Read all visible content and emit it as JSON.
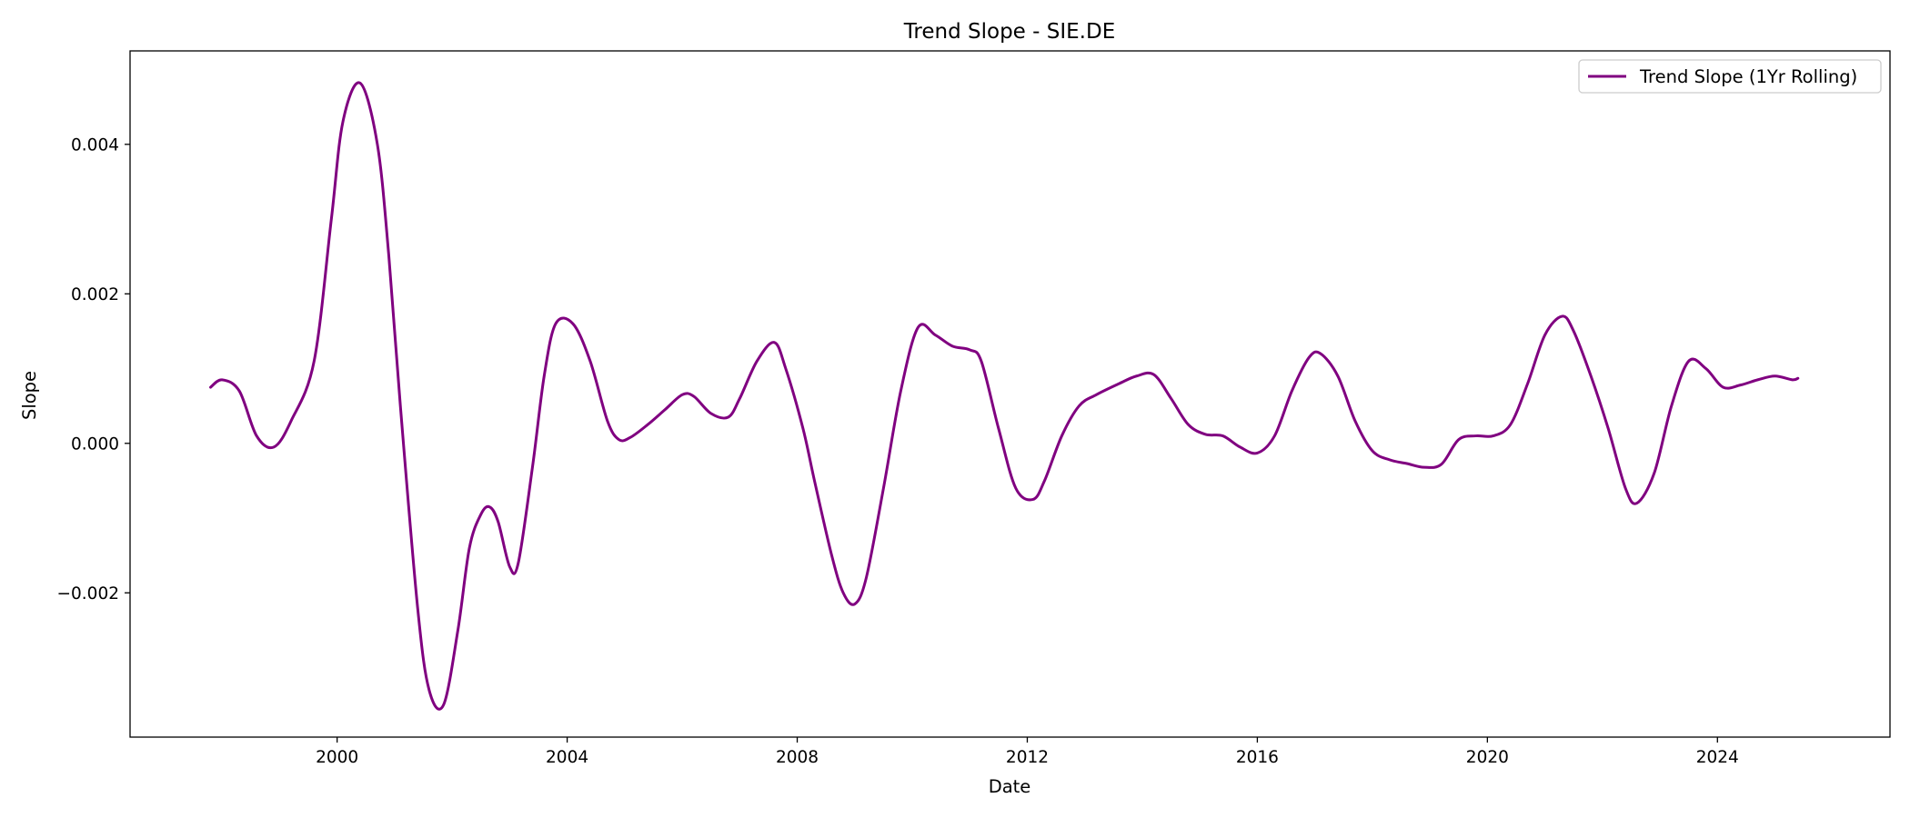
{
  "chart_data": {
    "type": "line",
    "title": "Trend Slope - SIE.DE",
    "xlabel": "Date",
    "ylabel": "Slope",
    "xlim": [
      1996.4,
      2027.0
    ],
    "ylim": [
      -0.00393,
      0.00525
    ],
    "grid": false,
    "legend_position": "top-right",
    "x_ticks": [
      2000,
      2004,
      2008,
      2012,
      2016,
      2020,
      2024
    ],
    "x_tick_labels": [
      "2000",
      "2004",
      "2008",
      "2012",
      "2016",
      "2020",
      "2024"
    ],
    "y_ticks": [
      -0.002,
      0.0,
      0.002,
      0.004
    ],
    "y_tick_labels": [
      "−0.002",
      "0.000",
      "0.002",
      "0.004"
    ],
    "series": [
      {
        "name": "Trend Slope (1Yr Rolling)",
        "color": "#800080",
        "x": [
          1997.8,
          1998.0,
          1998.3,
          1998.6,
          1998.9,
          1999.2,
          1999.6,
          1999.9,
          2000.1,
          2000.4,
          2000.7,
          2000.9,
          2001.1,
          2001.4,
          2001.6,
          2001.85,
          2002.1,
          2002.3,
          2002.5,
          2002.65,
          2002.8,
          2003.0,
          2003.15,
          2003.4,
          2003.6,
          2003.8,
          2004.1,
          2004.4,
          2004.7,
          2004.9,
          2005.1,
          2005.4,
          2005.7,
          2006.0,
          2006.2,
          2006.5,
          2006.8,
          2007.0,
          2007.3,
          2007.6,
          2007.8,
          2008.1,
          2008.3,
          2008.6,
          2008.8,
          2009.0,
          2009.2,
          2009.5,
          2009.8,
          2010.1,
          2010.4,
          2010.7,
          2011.0,
          2011.2,
          2011.5,
          2011.8,
          2012.1,
          2012.3,
          2012.6,
          2012.9,
          2013.2,
          2013.6,
          2013.9,
          2014.2,
          2014.5,
          2014.8,
          2015.1,
          2015.4,
          2015.7,
          2016.0,
          2016.3,
          2016.6,
          2016.9,
          2017.1,
          2017.4,
          2017.7,
          2018.0,
          2018.3,
          2018.6,
          2018.9,
          2019.2,
          2019.5,
          2019.8,
          2020.1,
          2020.4,
          2020.7,
          2021.0,
          2021.3,
          2021.5,
          2021.8,
          2022.1,
          2022.4,
          2022.6,
          2022.9,
          2023.2,
          2023.5,
          2023.8,
          2024.1,
          2024.4,
          2024.7,
          2025.0,
          2025.3,
          2025.4
        ],
        "values": [
          0.00075,
          0.00085,
          0.0007,
          0.0001,
          -5e-05,
          0.0003,
          0.0011,
          0.003,
          0.0043,
          0.00482,
          0.004,
          0.0025,
          0.0005,
          -0.0022,
          -0.0033,
          -0.0035,
          -0.0025,
          -0.0014,
          -0.00095,
          -0.00085,
          -0.00105,
          -0.00165,
          -0.0016,
          -0.0003,
          0.0009,
          0.0016,
          0.0016,
          0.0011,
          0.0003,
          5e-05,
          8e-05,
          0.00025,
          0.00045,
          0.00065,
          0.00063,
          0.0004,
          0.00035,
          0.0006,
          0.0011,
          0.00135,
          0.001,
          0.0002,
          -0.0005,
          -0.0015,
          -0.002,
          -0.00215,
          -0.0018,
          -0.0006,
          0.0007,
          0.00155,
          0.00145,
          0.0013,
          0.00125,
          0.0011,
          0.0002,
          -0.0006,
          -0.00075,
          -0.0005,
          0.0001,
          0.0005,
          0.00065,
          0.0008,
          0.0009,
          0.00092,
          0.0006,
          0.00025,
          0.00012,
          0.0001,
          -5e-05,
          -0.00013,
          0.0001,
          0.0007,
          0.00115,
          0.0012,
          0.0009,
          0.0003,
          -0.0001,
          -0.00022,
          -0.00027,
          -0.00032,
          -0.00028,
          5e-05,
          0.0001,
          0.0001,
          0.00025,
          0.0008,
          0.00145,
          0.0017,
          0.0015,
          0.0009,
          0.0002,
          -0.0006,
          -0.0008,
          -0.0004,
          0.0005,
          0.0011,
          0.001,
          0.00075,
          0.00078,
          0.00085,
          0.0009,
          0.00085,
          0.00087
        ]
      }
    ]
  }
}
